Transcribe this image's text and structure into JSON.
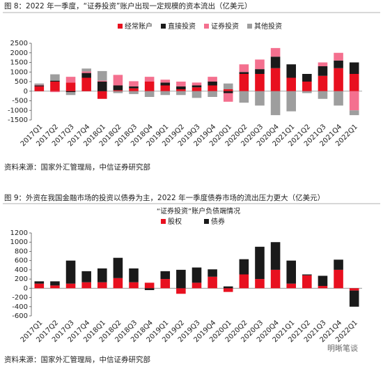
{
  "chart_data": [
    {
      "type": "stacked_bar",
      "caption": "图 8：2022 年一季度，“证券投资”账户出现一定规模的资本流出（亿美元）",
      "source": "资料来源：国家外汇管理局，中信证券研究部",
      "categories": [
        "2017Q1",
        "2017Q2",
        "2017Q3",
        "2017Q4",
        "2018Q1",
        "2018Q2",
        "2018Q3",
        "2018Q4",
        "2019Q1",
        "2019Q2",
        "2019Q3",
        "2019Q4",
        "2020Q1",
        "2020Q2",
        "2020Q3",
        "2020Q4",
        "2021Q1",
        "2021Q2",
        "2021Q3",
        "2021Q4",
        "2022Q1"
      ],
      "series": [
        {
          "name": "经常账户",
          "color": "#e8101f",
          "values": [
            250,
            500,
            450,
            700,
            -400,
            50,
            150,
            500,
            300,
            100,
            200,
            300,
            100,
            900,
            900,
            1200,
            700,
            500,
            800,
            1200,
            900
          ]
        },
        {
          "name": "直接投资",
          "color": "#1a1a1a",
          "values": [
            50,
            50,
            -50,
            250,
            500,
            250,
            100,
            0,
            150,
            150,
            100,
            200,
            -100,
            100,
            250,
            600,
            700,
            400,
            500,
            400,
            600
          ]
        },
        {
          "name": "证券投资",
          "color": "#f4708f",
          "values": [
            30,
            -50,
            300,
            80,
            50,
            550,
            270,
            250,
            150,
            250,
            150,
            250,
            -450,
            400,
            500,
            450,
            0,
            0,
            200,
            400,
            -1000
          ]
        },
        {
          "name": "其他投资",
          "color": "#9e9e9e",
          "values": [
            70,
            330,
            -150,
            150,
            500,
            -100,
            -150,
            -300,
            -200,
            -200,
            -350,
            -300,
            300,
            -600,
            -750,
            -1250,
            -1050,
            -100,
            -400,
            -750,
            -250
          ]
        }
      ],
      "ylim": [
        -1500,
        2500
      ],
      "yticks": [
        -1500,
        -1000,
        -500,
        0,
        500,
        1000,
        1500,
        2000,
        2500
      ]
    },
    {
      "type": "stacked_bar",
      "caption": "图 9：外资在我国金融市场的投资以债券为主，2022 年一季度债券市场的流出压力更大（亿美元）",
      "title": "“证券投资”账户负债端情况",
      "source": "资料来源：国家外汇管理局，中信证券研究部",
      "categories": [
        "2017Q1",
        "2017Q2",
        "2017Q3",
        "2017Q4",
        "2018Q1",
        "2018Q2",
        "2018Q3",
        "2018Q4",
        "2019Q1",
        "2019Q2",
        "2019Q3",
        "2019Q4",
        "2020Q1",
        "2020Q2",
        "2020Q3",
        "2020Q4",
        "2021Q1",
        "2021Q2",
        "2021Q3",
        "2021Q4",
        "2022Q1"
      ],
      "series": [
        {
          "name": "股权",
          "color": "#e8101f",
          "values": [
            100,
            60,
            100,
            130,
            130,
            220,
            130,
            120,
            200,
            -120,
            120,
            250,
            -80,
            300,
            200,
            400,
            100,
            280,
            50,
            400,
            -50
          ]
        },
        {
          "name": "债券",
          "color": "#1a1a1a",
          "values": [
            50,
            90,
            500,
            240,
            300,
            440,
            300,
            -40,
            170,
            400,
            330,
            160,
            40,
            330,
            700,
            600,
            500,
            20,
            220,
            220,
            -350
          ]
        }
      ],
      "ylim": [
        -600,
        1200
      ],
      "yticks": [
        -600,
        -400,
        -200,
        0,
        200,
        400,
        600,
        800,
        1000,
        1200
      ]
    }
  ],
  "watermark": "明晰笔谈"
}
